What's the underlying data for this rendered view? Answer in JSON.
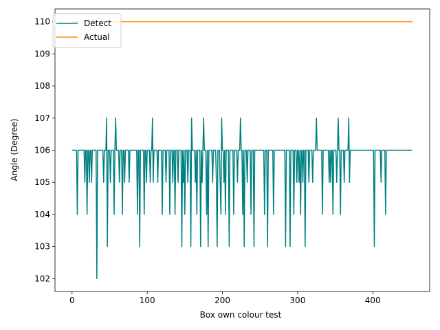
{
  "chart_data": {
    "type": "line",
    "title": "",
    "xlabel": "Box own colour test",
    "ylabel": "Angle (Degree)",
    "xlim": [
      -22.65,
      475.65
    ],
    "ylim": [
      101.6,
      110.4
    ],
    "xticks": [
      0,
      100,
      200,
      300,
      400
    ],
    "yticks": [
      102,
      103,
      104,
      105,
      106,
      107,
      108,
      109,
      110
    ],
    "grid": false,
    "legend": {
      "location": "upper-left"
    },
    "series": [
      {
        "name": "Detect",
        "color": "#008080",
        "values": [
          106,
          106,
          106,
          106,
          106,
          106,
          106,
          104,
          106,
          106,
          106,
          106,
          106,
          106,
          106,
          106,
          106,
          105,
          106,
          106,
          104,
          106,
          106,
          105,
          106,
          106,
          105,
          106,
          106,
          106,
          106,
          106,
          106,
          102,
          106,
          106,
          106,
          106,
          106,
          106,
          106,
          106,
          105,
          106,
          106,
          106,
          107,
          103,
          106,
          106,
          106,
          105,
          106,
          106,
          106,
          106,
          104,
          106,
          107,
          106,
          106,
          106,
          106,
          105,
          106,
          106,
          106,
          104,
          106,
          106,
          105,
          106,
          106,
          106,
          106,
          106,
          105,
          106,
          106,
          106,
          106,
          106,
          106,
          106,
          106,
          106,
          106,
          104,
          106,
          106,
          103,
          106,
          106,
          106,
          106,
          106,
          104,
          106,
          106,
          105,
          106,
          106,
          106,
          106,
          105,
          106,
          106,
          107,
          105,
          106,
          106,
          106,
          106,
          106,
          105,
          106,
          106,
          106,
          106,
          106,
          104,
          106,
          106,
          106,
          106,
          105,
          106,
          106,
          106,
          106,
          104,
          106,
          106,
          106,
          105,
          106,
          106,
          104,
          106,
          106,
          106,
          105,
          106,
          106,
          106,
          106,
          103,
          106,
          105,
          106,
          104,
          106,
          106,
          106,
          105,
          106,
          106,
          106,
          103,
          107,
          106,
          106,
          106,
          106,
          105,
          106,
          104,
          106,
          106,
          106,
          106,
          103,
          106,
          105,
          106,
          107,
          106,
          106,
          106,
          104,
          106,
          103,
          106,
          106,
          106,
          106,
          106,
          105,
          106,
          106,
          106,
          106,
          105,
          103,
          106,
          106,
          106,
          105,
          104,
          107,
          106,
          106,
          105,
          106,
          104,
          106,
          106,
          106,
          106,
          103,
          106,
          106,
          106,
          106,
          106,
          104,
          106,
          106,
          106,
          106,
          105,
          106,
          106,
          106,
          107,
          106,
          106,
          104,
          106,
          103,
          106,
          106,
          106,
          105,
          106,
          106,
          106,
          106,
          104,
          106,
          106,
          106,
          103,
          106,
          106,
          106,
          106,
          106,
          106,
          106,
          106,
          106,
          106,
          106,
          106,
          106,
          104,
          106,
          106,
          106,
          103,
          106,
          106,
          106,
          106,
          106,
          106,
          106,
          104,
          106,
          106,
          106,
          106,
          106,
          106,
          106,
          106,
          106,
          106,
          106,
          106,
          106,
          106,
          106,
          103,
          106,
          106,
          106,
          106,
          106,
          103,
          106,
          106,
          106,
          106,
          104,
          106,
          106,
          106,
          105,
          106,
          106,
          105,
          106,
          104,
          106,
          106,
          105,
          106,
          106,
          103,
          106,
          106,
          106,
          106,
          105,
          106,
          106,
          106,
          106,
          105,
          106,
          106,
          106,
          106,
          107,
          106,
          106,
          106,
          106,
          106,
          106,
          106,
          104,
          106,
          106,
          106,
          106,
          106,
          106,
          106,
          106,
          105,
          106,
          105,
          106,
          106,
          104,
          106,
          106,
          106,
          106,
          105,
          106,
          107,
          106,
          106,
          104,
          106,
          106,
          106,
          106,
          105,
          106,
          106,
          106,
          106,
          106,
          107,
          105,
          106,
          106,
          106,
          106,
          106,
          106,
          106,
          106,
          106,
          106,
          106,
          106,
          106,
          106,
          106,
          106,
          106,
          106,
          106,
          106,
          106,
          106,
          106,
          106,
          106,
          106,
          106,
          106,
          106,
          106,
          106,
          106,
          103,
          106,
          106,
          106,
          106,
          106,
          106,
          106,
          106,
          105,
          106,
          106,
          106,
          106,
          106,
          104,
          106,
          106,
          106,
          106,
          106,
          106,
          106,
          106,
          106,
          106,
          106,
          106,
          106,
          106,
          106,
          106,
          106,
          106,
          106,
          106,
          106,
          106,
          106,
          106,
          106,
          106,
          106,
          106,
          106,
          106,
          106,
          106,
          106,
          106,
          106
        ]
      },
      {
        "name": "Actual",
        "color": "#ff8c00",
        "x": [
          0,
          453
        ],
        "values": [
          110,
          110
        ]
      }
    ]
  }
}
